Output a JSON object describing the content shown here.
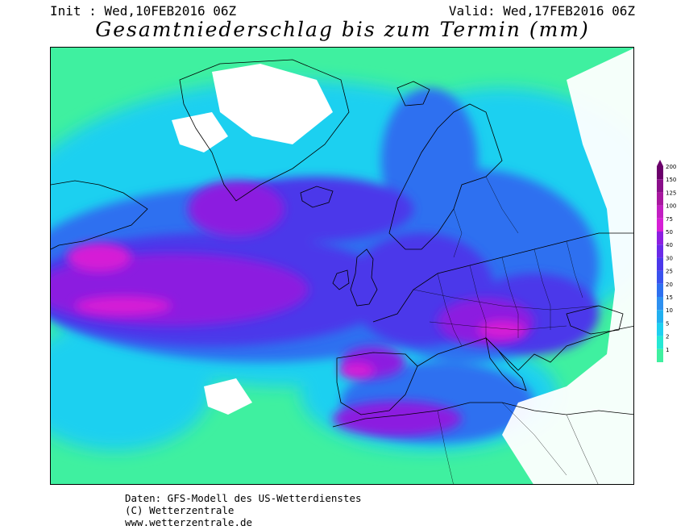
{
  "header": {
    "init_label": "Init : Wed,10FEB2016 06Z",
    "valid_label": "Valid: Wed,17FEB2016 06Z"
  },
  "title": "Gesamtniederschlag bis zum Termin (mm)",
  "credits": {
    "line1": "Daten: GFS-Modell des US-Wetterdienstes",
    "line2": "(C) Wetterzentrale",
    "line3": "www.wetterzentrale.de"
  },
  "legend": {
    "levels": [
      {
        "label": "200",
        "color": "#6b006b"
      },
      {
        "label": "150",
        "color": "#8a0f8a"
      },
      {
        "label": "125",
        "color": "#a8189f"
      },
      {
        "label": "100",
        "color": "#c21fc2"
      },
      {
        "label": "75",
        "color": "#d61fd6"
      },
      {
        "label": "50",
        "color": "#8c1fe0"
      },
      {
        "label": "40",
        "color": "#6a2ae8"
      },
      {
        "label": "30",
        "color": "#4b38ea"
      },
      {
        "label": "25",
        "color": "#3a52ee"
      },
      {
        "label": "20",
        "color": "#2e70f0"
      },
      {
        "label": "15",
        "color": "#2e90f0"
      },
      {
        "label": "10",
        "color": "#22b0f0"
      },
      {
        "label": "5",
        "color": "#1ed0f0"
      },
      {
        "label": "2",
        "color": "#25e8d4"
      },
      {
        "label": "1",
        "color": "#3ff0a0"
      }
    ]
  },
  "colors": {
    "none": "#ffffff",
    "low": "#3ff0a0",
    "cyan": "#1ed0f0",
    "blue": "#2e70f0",
    "indigo": "#4b38ea",
    "violet": "#8c1fe0",
    "magenta": "#d61fd6"
  }
}
